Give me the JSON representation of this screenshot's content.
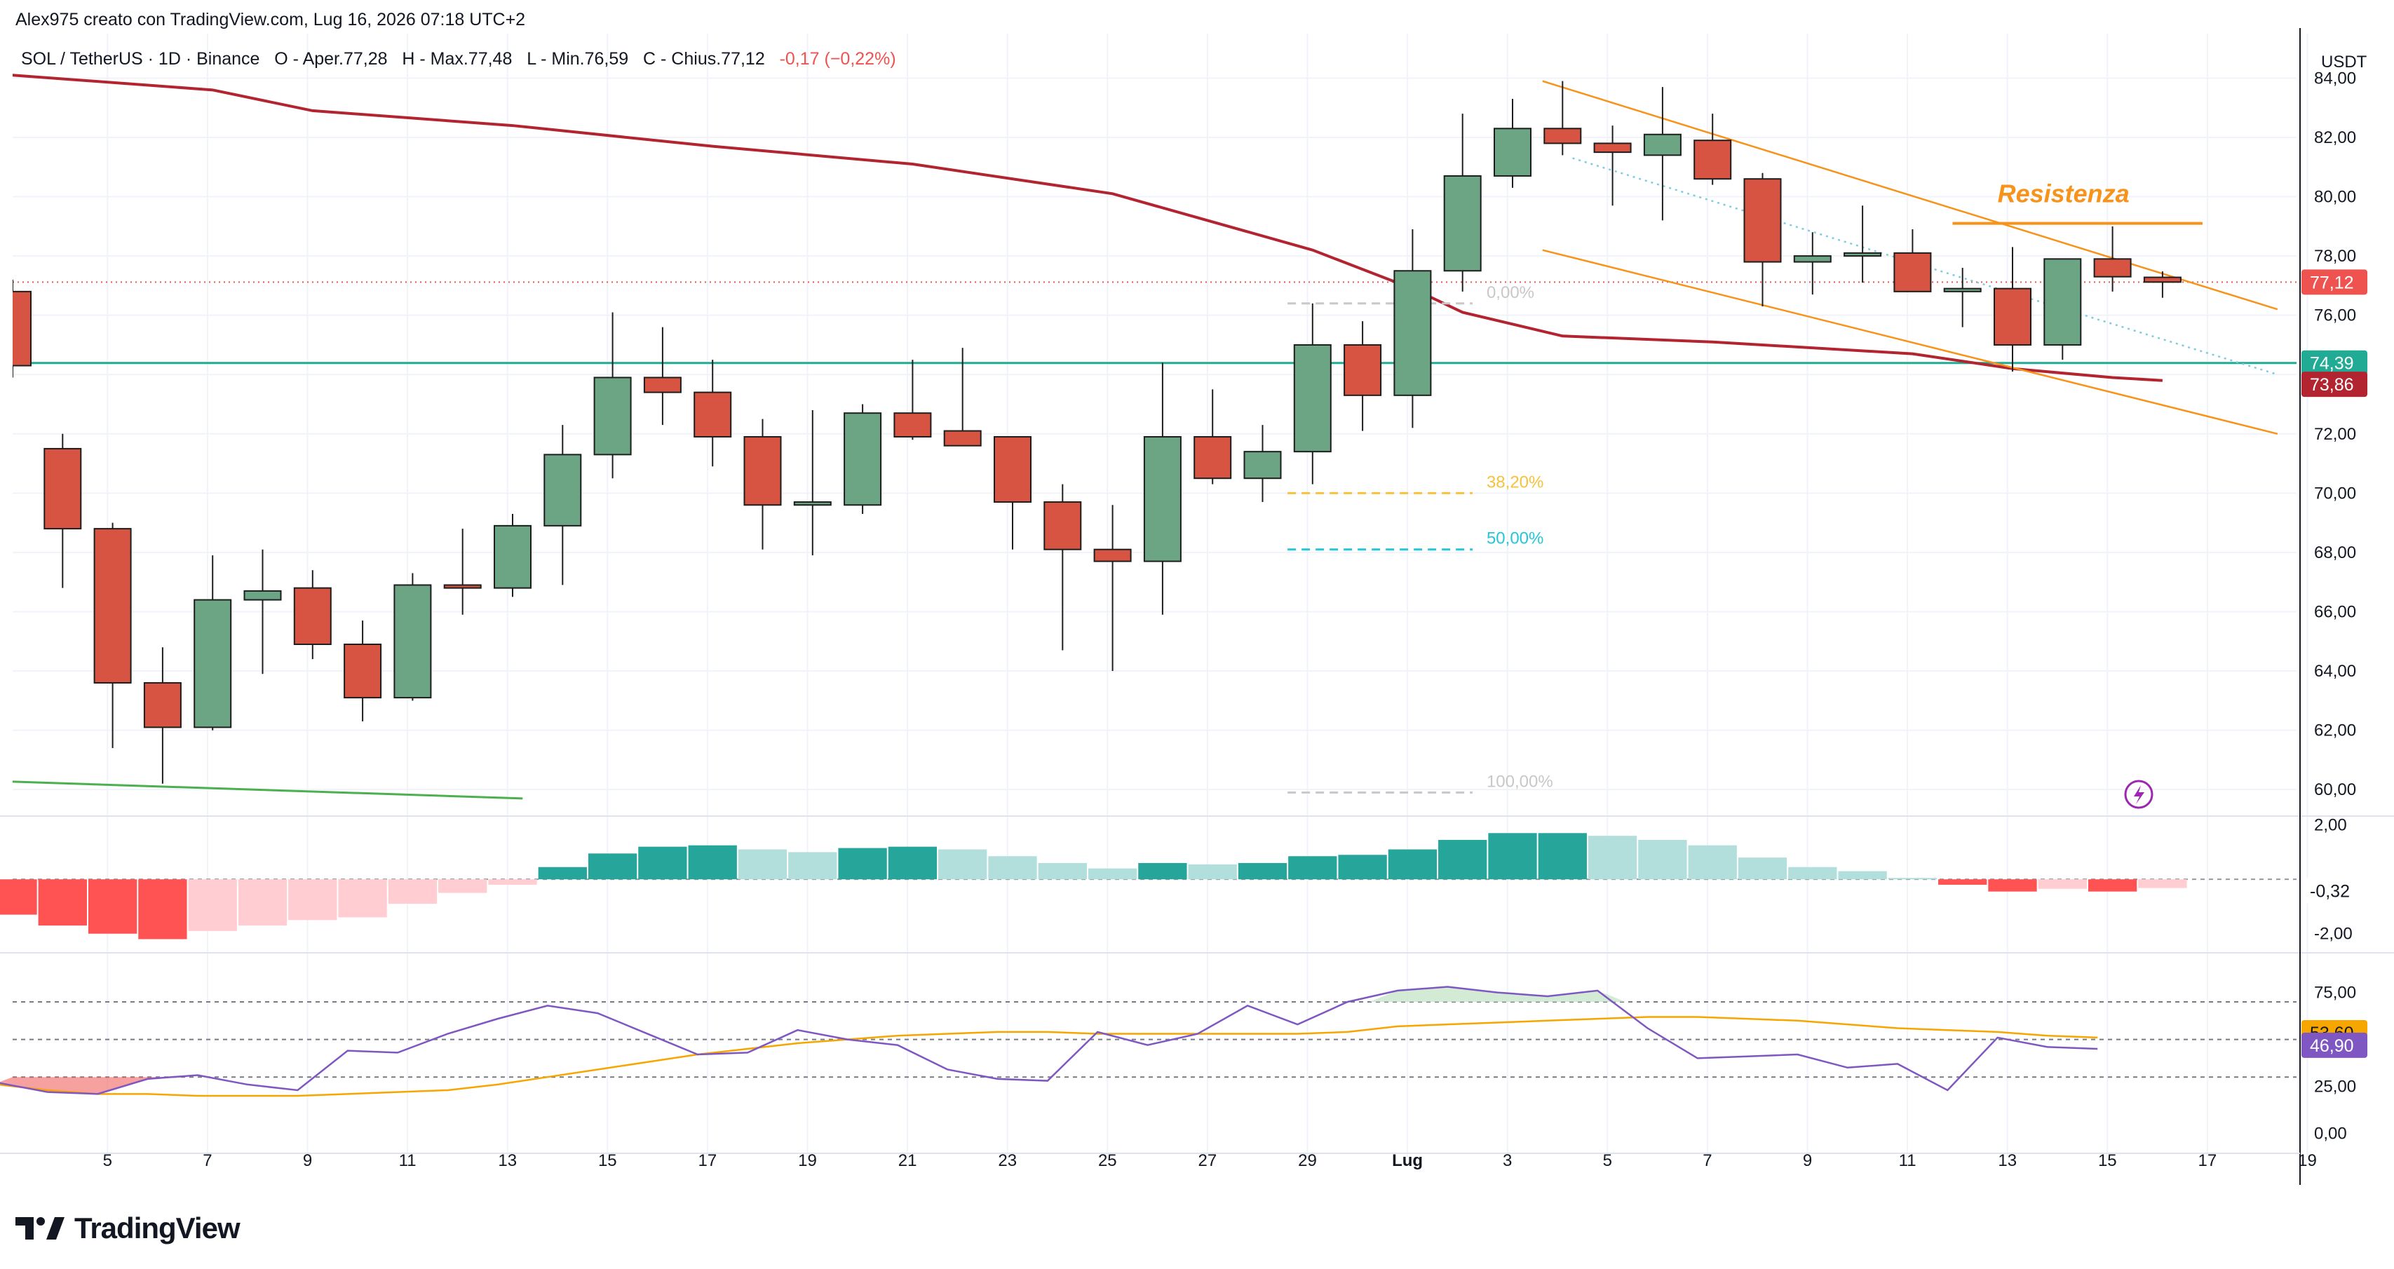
{
  "header": {
    "author_line": "Alex975 creato con TradingView.com, Lug 16, 2026 07:18 UTC+2"
  },
  "legend": {
    "symbol": "SOL / TetherUS · 1D · Binance",
    "open": "O - Aper.77,28",
    "high": "H - Max.77,48",
    "low": "L - Min.76,59",
    "close": "C - Chius.77,12",
    "change": "-0,17 (−0,22%)"
  },
  "brand": {
    "name": "TradingView"
  },
  "colors": {
    "up": "#6ba583",
    "down": "#d75442",
    "ma": "#b2242f",
    "support": "#22ab94",
    "channel": "#f7931a",
    "resistance": "#f7931a",
    "hist_up_strong": "#26a69a",
    "hist_up_weak": "#b2dfdb",
    "hist_down_strong": "#ff5252",
    "hist_down_weak": "#ffcdd2",
    "rsi": "#7e57c2",
    "rsi_ma": "#f7a600",
    "fib_382": "#f7c23b",
    "fib_50": "#26c6da",
    "fib_other": "#c8c8c8"
  },
  "chart_data": {
    "type": "candlestick",
    "currency": "USDT",
    "x_tick_labels": [
      "5",
      "7",
      "9",
      "11",
      "13",
      "15",
      "17",
      "19",
      "21",
      "23",
      "25",
      "27",
      "29",
      "Lug",
      "3",
      "5",
      "7",
      "9",
      "11",
      "13",
      "15",
      "17",
      "19"
    ],
    "price_axis": {
      "ticks": [
        "84,00",
        "82,00",
        "80,00",
        "78,00",
        "76,00",
        "72,00",
        "70,00",
        "68,00",
        "66,00",
        "64,00",
        "62,00",
        "60,00"
      ],
      "ylim": [
        59.2,
        85.5
      ]
    },
    "price_labels": {
      "last": "77,12",
      "support": "74,39",
      "ma": "73,86"
    },
    "candles": [
      {
        "date": "Jun 3",
        "o": 76.8,
        "h": 77.2,
        "l": 73.9,
        "c": 74.3
      },
      {
        "date": "Jun 4",
        "o": 71.5,
        "h": 72.0,
        "l": 66.8,
        "c": 68.8
      },
      {
        "date": "Jun 5",
        "o": 68.8,
        "h": 69.0,
        "l": 61.4,
        "c": 63.6
      },
      {
        "date": "Jun 6",
        "o": 63.6,
        "h": 64.8,
        "l": 60.2,
        "c": 62.1
      },
      {
        "date": "Jun 7",
        "o": 62.1,
        "h": 67.9,
        "l": 62.0,
        "c": 66.4
      },
      {
        "date": "Jun 8",
        "o": 66.4,
        "h": 68.1,
        "l": 63.9,
        "c": 66.7
      },
      {
        "date": "Jun 9",
        "o": 66.8,
        "h": 67.4,
        "l": 64.4,
        "c": 64.9
      },
      {
        "date": "Jun 10",
        "o": 64.9,
        "h": 65.7,
        "l": 62.3,
        "c": 63.1
      },
      {
        "date": "Jun 11",
        "o": 63.1,
        "h": 67.3,
        "l": 63.0,
        "c": 66.9
      },
      {
        "date": "Jun 12",
        "o": 66.9,
        "h": 68.8,
        "l": 65.9,
        "c": 66.8
      },
      {
        "date": "Jun 13",
        "o": 66.8,
        "h": 69.3,
        "l": 66.5,
        "c": 68.9
      },
      {
        "date": "Jun 14",
        "o": 68.9,
        "h": 72.3,
        "l": 66.9,
        "c": 71.3
      },
      {
        "date": "Jun 15",
        "o": 71.3,
        "h": 76.1,
        "l": 70.5,
        "c": 73.9
      },
      {
        "date": "Jun 16",
        "o": 73.9,
        "h": 75.6,
        "l": 72.3,
        "c": 73.4
      },
      {
        "date": "Jun 17",
        "o": 73.4,
        "h": 74.5,
        "l": 70.9,
        "c": 71.9
      },
      {
        "date": "Jun 18",
        "o": 71.9,
        "h": 72.5,
        "l": 68.1,
        "c": 69.6
      },
      {
        "date": "Jun 19",
        "o": 69.6,
        "h": 72.8,
        "l": 67.9,
        "c": 69.7
      },
      {
        "date": "Jun 20",
        "o": 69.6,
        "h": 73.0,
        "l": 69.3,
        "c": 72.7
      },
      {
        "date": "Jun 21",
        "o": 72.7,
        "h": 74.5,
        "l": 71.8,
        "c": 71.9
      },
      {
        "date": "Jun 22",
        "o": 72.1,
        "h": 74.9,
        "l": 71.6,
        "c": 71.6
      },
      {
        "date": "Jun 23",
        "o": 71.9,
        "h": 71.9,
        "l": 68.1,
        "c": 69.7
      },
      {
        "date": "Jun 24",
        "o": 69.7,
        "h": 70.3,
        "l": 64.7,
        "c": 68.1
      },
      {
        "date": "Jun 25",
        "o": 68.1,
        "h": 69.6,
        "l": 64.0,
        "c": 67.7
      },
      {
        "date": "Jun 26",
        "o": 67.7,
        "h": 74.4,
        "l": 65.9,
        "c": 71.9
      },
      {
        "date": "Jun 27",
        "o": 71.9,
        "h": 73.5,
        "l": 70.3,
        "c": 70.5
      },
      {
        "date": "Jun 28",
        "o": 70.5,
        "h": 72.3,
        "l": 69.7,
        "c": 71.4
      },
      {
        "date": "Jun 29",
        "o": 71.4,
        "h": 76.4,
        "l": 70.3,
        "c": 75.0
      },
      {
        "date": "Jun 30",
        "o": 75.0,
        "h": 75.8,
        "l": 72.1,
        "c": 73.3
      },
      {
        "date": "Jul 1",
        "o": 73.3,
        "h": 78.9,
        "l": 72.2,
        "c": 77.5
      },
      {
        "date": "Jul 2",
        "o": 77.5,
        "h": 82.8,
        "l": 76.8,
        "c": 80.7
      },
      {
        "date": "Jul 3",
        "o": 80.7,
        "h": 83.3,
        "l": 80.3,
        "c": 82.3
      },
      {
        "date": "Jul 4",
        "o": 82.3,
        "h": 83.9,
        "l": 81.4,
        "c": 81.8
      },
      {
        "date": "Jul 5",
        "o": 81.8,
        "h": 82.4,
        "l": 79.7,
        "c": 81.5
      },
      {
        "date": "Jul 6",
        "o": 81.4,
        "h": 83.7,
        "l": 79.2,
        "c": 82.1
      },
      {
        "date": "Jul 7",
        "o": 81.9,
        "h": 82.8,
        "l": 80.4,
        "c": 80.6
      },
      {
        "date": "Jul 8",
        "o": 80.6,
        "h": 80.8,
        "l": 76.3,
        "c": 77.8
      },
      {
        "date": "Jul 9",
        "o": 77.8,
        "h": 78.8,
        "l": 76.7,
        "c": 78.0
      },
      {
        "date": "Jul 10",
        "o": 78.0,
        "h": 79.7,
        "l": 77.1,
        "c": 78.1
      },
      {
        "date": "Jul 11",
        "o": 78.1,
        "h": 78.9,
        "l": 76.8,
        "c": 76.8
      },
      {
        "date": "Jul 12",
        "o": 76.8,
        "h": 77.6,
        "l": 75.6,
        "c": 76.9
      },
      {
        "date": "Jul 13",
        "o": 76.9,
        "h": 78.3,
        "l": 74.1,
        "c": 75.0
      },
      {
        "date": "Jul 14",
        "o": 75.0,
        "h": 77.9,
        "l": 74.5,
        "c": 77.9
      },
      {
        "date": "Jul 15",
        "o": 77.9,
        "h": 79.0,
        "l": 76.8,
        "c": 77.3
      },
      {
        "date": "Jul 16",
        "o": 77.28,
        "h": 77.48,
        "l": 76.59,
        "c": 77.12
      }
    ],
    "moving_average": [
      [
        -6.5,
        85.3
      ],
      [
        -4,
        84.7
      ],
      [
        0,
        84.1
      ],
      [
        4,
        83.6
      ],
      [
        6,
        82.9
      ],
      [
        10,
        82.4
      ],
      [
        14,
        81.7
      ],
      [
        18,
        81.1
      ],
      [
        22,
        80.1
      ],
      [
        26,
        78.2
      ],
      [
        28,
        76.9
      ],
      [
        29,
        76.1
      ],
      [
        31,
        75.3
      ],
      [
        34,
        75.1
      ],
      [
        38,
        74.7
      ],
      [
        40,
        74.2
      ],
      [
        42,
        73.9
      ],
      [
        43,
        73.8
      ]
    ],
    "support_level": 74.39,
    "resistance": {
      "label": "Resistenza",
      "level": 79.1,
      "from_index": 38.8,
      "to_index": 43.8
    },
    "channel": {
      "upper": [
        [
          30.6,
          83.9
        ],
        [
          45.3,
          76.2
        ]
      ],
      "lower": [
        [
          30.6,
          78.2
        ],
        [
          45.3,
          72.0
        ]
      ],
      "mid_dotted": [
        [
          31.2,
          81.3
        ],
        [
          45.3,
          74.0
        ]
      ]
    },
    "old_trendline": [
      [
        -0.6,
        60.3
      ],
      [
        10.2,
        59.7
      ]
    ],
    "fibonacci": {
      "from_index": 25.5,
      "to_index": 29.2,
      "levels": [
        {
          "label": "0,00%",
          "price": 76.4
        },
        {
          "label": "38,20%",
          "price": 70.0
        },
        {
          "label": "50,00%",
          "price": 68.1
        },
        {
          "label": "100,00%",
          "price": 59.9
        }
      ]
    },
    "histogram": {
      "axis_ticks": [
        "2,00",
        "-2,00"
      ],
      "current_label": "-0,32",
      "ylim": [
        -2.6,
        2.3
      ],
      "values": [
        -1.3,
        -1.7,
        -2.0,
        -2.2,
        -1.9,
        -1.7,
        -1.5,
        -1.4,
        -0.9,
        -0.5,
        -0.2,
        0.45,
        0.95,
        1.2,
        1.25,
        1.1,
        1.0,
        1.15,
        1.2,
        1.1,
        0.85,
        0.6,
        0.4,
        0.6,
        0.55,
        0.6,
        0.85,
        0.9,
        1.1,
        1.45,
        1.7,
        1.7,
        1.6,
        1.45,
        1.25,
        0.8,
        0.45,
        0.3,
        0.05,
        -0.2,
        -0.45,
        -0.35,
        -0.45,
        -0.32
      ]
    },
    "rsi": {
      "axis_ticks": [
        "75,00",
        "25,00",
        "0,00"
      ],
      "guide_levels": [
        70,
        50,
        30
      ],
      "ylim": [
        -5,
        95
      ],
      "rsi_label": "46,90",
      "rsi_ma_label": "53,60",
      "rsi_values": [
        27,
        22,
        21,
        29,
        31,
        26,
        23,
        44,
        43,
        53,
        61,
        68,
        64,
        53,
        42,
        43,
        55,
        50,
        47,
        34,
        29,
        28,
        54,
        47,
        53,
        68,
        58,
        70,
        76,
        78,
        75,
        73,
        76,
        56,
        40,
        41,
        42,
        35,
        37,
        23,
        51,
        46,
        45
      ],
      "rsi_ma_values": [
        26,
        23,
        21,
        21,
        20,
        20,
        20,
        21,
        22,
        23,
        26,
        30,
        34,
        38,
        42,
        45,
        48,
        50,
        52,
        53,
        54,
        54,
        53,
        53,
        53,
        53,
        53,
        54,
        57,
        58,
        59,
        60,
        61,
        62,
        62,
        61,
        60,
        58,
        56,
        55,
        54,
        52,
        51
      ]
    }
  }
}
